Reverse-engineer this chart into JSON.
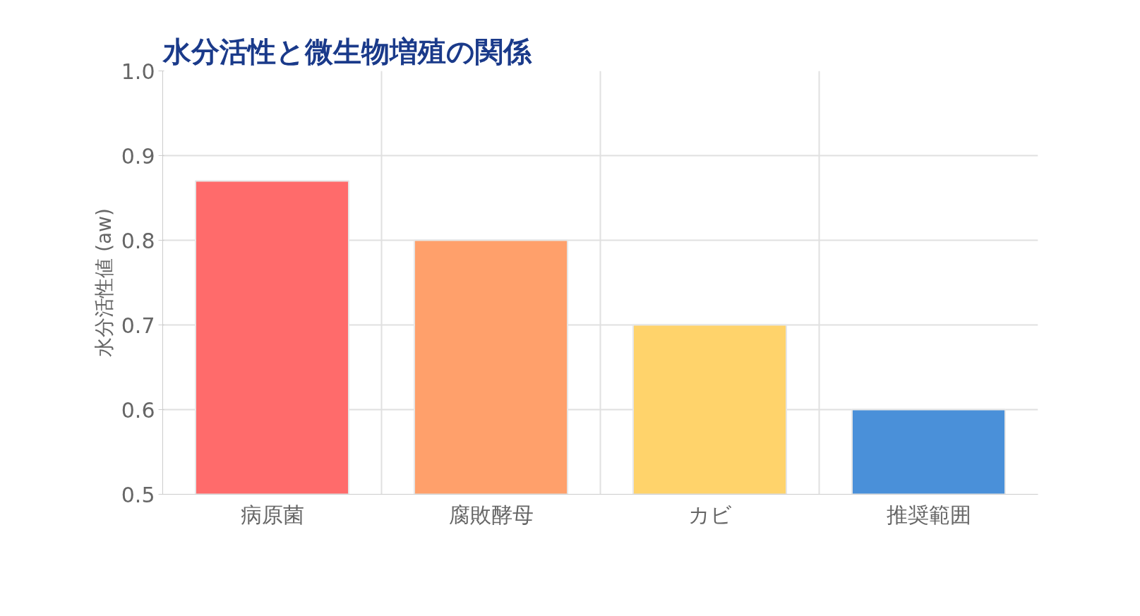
{
  "chart_data": {
    "type": "bar",
    "title": "水分活性と微生物増殖の関係",
    "ylabel": "水分活性値 (aw)",
    "categories": [
      "病原菌",
      "腐敗酵母",
      "カビ",
      "推奨範囲"
    ],
    "values": [
      0.87,
      0.8,
      0.7,
      0.6
    ],
    "colors": [
      "#ff6b6b",
      "#ffa06b",
      "#ffd36b",
      "#4a90d9"
    ],
    "ylim": [
      0.5,
      1.0
    ],
    "yticks": [
      {
        "value": 0.5,
        "label": "0.5"
      },
      {
        "value": 0.6,
        "label": "0.6"
      },
      {
        "value": 0.7,
        "label": "0.7"
      },
      {
        "value": 0.8,
        "label": "0.8"
      },
      {
        "value": 0.9,
        "label": "0.9"
      },
      {
        "value": 1.0,
        "label": "1.0"
      }
    ],
    "grid": true
  }
}
